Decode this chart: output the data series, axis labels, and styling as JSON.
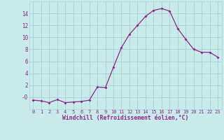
{
  "x": [
    0,
    1,
    2,
    3,
    4,
    5,
    6,
    7,
    8,
    9,
    10,
    11,
    12,
    13,
    14,
    15,
    16,
    17,
    18,
    19,
    20,
    21,
    22,
    23
  ],
  "y": [
    -0.5,
    -0.6,
    -0.9,
    -0.4,
    -0.9,
    -0.8,
    -0.7,
    -0.5,
    1.7,
    1.6,
    5.0,
    8.3,
    10.5,
    12.0,
    13.5,
    14.5,
    14.8,
    14.4,
    11.5,
    9.7,
    8.0,
    7.5,
    7.5,
    6.7
  ],
  "line_color": "#8b2888",
  "marker_color": "#8b2888",
  "bg_color": "#c8eaea",
  "grid_color": "#aad4d4",
  "xlabel": "Windchill (Refroidissement éolien,°C)",
  "xlabel_color": "#8b2888",
  "tick_color": "#8b2888",
  "ylim": [
    -2,
    16
  ],
  "xlim": [
    -0.5,
    23.5
  ],
  "yticks": [
    0,
    2,
    4,
    6,
    8,
    10,
    12,
    14
  ],
  "ytick_labels": [
    "-0",
    "2",
    "4",
    "6",
    "8",
    "10",
    "12",
    "14"
  ],
  "xticks": [
    0,
    1,
    2,
    3,
    4,
    5,
    6,
    7,
    8,
    9,
    10,
    11,
    12,
    13,
    14,
    15,
    16,
    17,
    18,
    19,
    20,
    21,
    22,
    23
  ]
}
